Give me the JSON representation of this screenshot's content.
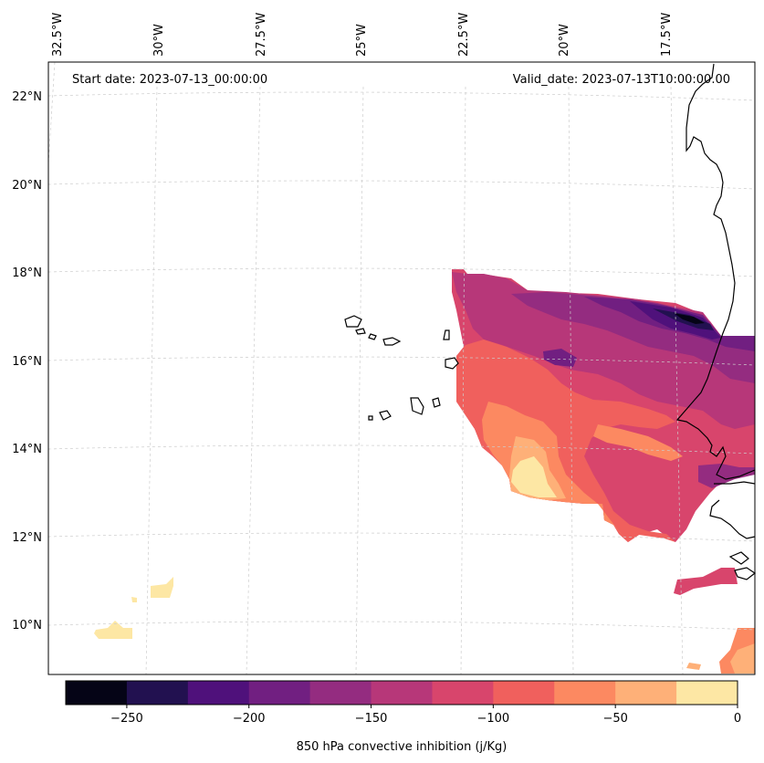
{
  "map": {
    "start_date": "Start date: 2023-07-13_00:00:00",
    "valid_date": "Valid_date: 2023-07-13T10:00:00.00",
    "lon_labels": [
      "32.5°W",
      "30°W",
      "27.5°W",
      "25°W",
      "22.5°W",
      "20°W",
      "17.5°W"
    ],
    "lat_labels": [
      "22°N",
      "20°N",
      "18°N",
      "16°N",
      "14°N",
      "12°N",
      "10°N"
    ]
  },
  "colorbar": {
    "label": "850 hPa convective inhibition (j/Kg)",
    "tick_labels": [
      "−250",
      "−200",
      "−150",
      "−100",
      "−50",
      "0"
    ],
    "min": -275,
    "max": 0,
    "levels": [
      -275,
      -250,
      -225,
      -200,
      -175,
      -150,
      -125,
      -100,
      -75,
      -50,
      -25,
      0
    ],
    "colors": [
      "#050416",
      "#221150",
      "#4f117b",
      "#711f81",
      "#942c80",
      "#b73779",
      "#d8456c",
      "#f0605d",
      "#fc8961",
      "#feb078",
      "#fde7a4"
    ]
  }
}
